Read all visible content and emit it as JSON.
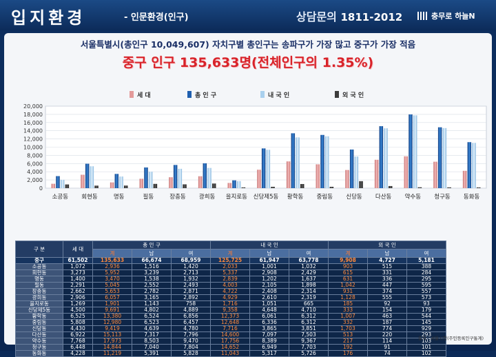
{
  "header": {
    "title": "입지환경",
    "subtitle": "- 인문환경(인구)",
    "right_label": "상담문의",
    "right_number": "1811-2012",
    "logo_text": "충무로 하늘N"
  },
  "headline": "서울특별시(총인구 10,049,607) 자치구별 총인구는 송파구가 가장 많고 중구가 가장 적음",
  "highlight": "중구 인구 135,633명(전체인구의 1.35%)",
  "colors": {
    "households": "#e39a9a",
    "total": "#1f5faf",
    "domestic": "#a9d0ee",
    "foreign": "#3c3c3c"
  },
  "chart_data": {
    "type": "bar",
    "categories": [
      "소공동",
      "회현동",
      "명동",
      "필동",
      "장충동",
      "광희동",
      "을지로동",
      "신당제5동",
      "황학동",
      "중림동",
      "신당동",
      "다산동",
      "약수동",
      "청구동",
      "동화동"
    ],
    "series": [
      {
        "name": "세 대",
        "values": [
          1072,
          3273,
          1400,
          2291,
          2662,
          2906,
          1269,
          4500,
          6525,
          5808,
          4430,
          6922,
          7768,
          6448,
          4228
        ]
      },
      {
        "name": "총 인 구",
        "values": [
          2936,
          5952,
          3470,
          5045,
          5653,
          6057,
          1901,
          9691,
          13380,
          12980,
          9419,
          15113,
          17973,
          14844,
          11219
        ]
      },
      {
        "name": "내 국 인",
        "values": [
          2033,
          5337,
          2839,
          4003,
          4722,
          4929,
          1716,
          9358,
          12373,
          12648,
          7716,
          14600,
          17756,
          14652,
          11043
        ]
      },
      {
        "name": "외 국 인",
        "values": [
          903,
          615,
          631,
          1042,
          931,
          1128,
          185,
          333,
          1007,
          332,
          1703,
          513,
          217,
          192,
          176
        ]
      }
    ],
    "ylim": [
      0,
      20000
    ],
    "yticks": [
      "0",
      "2,000",
      "4,000",
      "6,000",
      "8,000",
      "10,000",
      "12,000",
      "14,000",
      "16,000",
      "18,000",
      "20,000"
    ],
    "legend_position": "top",
    "grid": true
  },
  "table": {
    "corner": "구 분",
    "households": "세 대",
    "groups": [
      "총 인 구",
      "내 국 인",
      "외 국 인"
    ],
    "subheads": [
      "계",
      "남",
      "여"
    ],
    "total_row": [
      "중구",
      "61,502",
      "135,633",
      "66,674",
      "68,959",
      "125,725",
      "61,947",
      "63,778",
      "9,908",
      "4,727",
      "5,181"
    ],
    "rows": [
      [
        "소공동",
        "1,072",
        "2,936",
        "1,516",
        "1,420",
        "2,033",
        "1,001",
        "1,032",
        "903",
        "515",
        "388"
      ],
      [
        "회현동",
        "3,273",
        "5,952",
        "3,239",
        "2,713",
        "5,337",
        "2,908",
        "2,429",
        "615",
        "331",
        "284"
      ],
      [
        "명동",
        "1,400",
        "3,470",
        "1,538",
        "1,932",
        "2,839",
        "1,202",
        "1,637",
        "631",
        "336",
        "295"
      ],
      [
        "필동",
        "2,291",
        "5,045",
        "2,552",
        "2,493",
        "4,003",
        "2,105",
        "1,898",
        "1,042",
        "447",
        "595"
      ],
      [
        "장충동",
        "2,662",
        "5,653",
        "2,782",
        "2,871",
        "4,722",
        "2,408",
        "2,314",
        "931",
        "374",
        "557"
      ],
      [
        "광희동",
        "2,906",
        "6,057",
        "3,165",
        "2,892",
        "4,929",
        "2,610",
        "2,319",
        "1,128",
        "555",
        "573"
      ],
      [
        "을지로동",
        "1,269",
        "1,901",
        "1,143",
        "758",
        "1,716",
        "1,051",
        "665",
        "185",
        "92",
        "93"
      ],
      [
        "신당제5동",
        "4,500",
        "9,691",
        "4,802",
        "4,889",
        "9,358",
        "4,648",
        "4,710",
        "333",
        "154",
        "179"
      ],
      [
        "황학동",
        "6,525",
        "13,380",
        "6,524",
        "6,856",
        "12,373",
        "6,061",
        "6,312",
        "1,007",
        "463",
        "544"
      ],
      [
        "중림동",
        "5,808",
        "12,980",
        "6,523",
        "6,457",
        "12,648",
        "6,336",
        "6,312",
        "332",
        "187",
        "145"
      ],
      [
        "신당동",
        "4,430",
        "9,419",
        "4,639",
        "4,780",
        "7,716",
        "3,865",
        "3,851",
        "1,703",
        "774",
        "929"
      ],
      [
        "다산동",
        "6,922",
        "15,113",
        "7,317",
        "7,796",
        "14,600",
        "7,097",
        "7,503",
        "513",
        "220",
        "293"
      ],
      [
        "약수동",
        "7,768",
        "17,973",
        "8,503",
        "9,470",
        "17,756",
        "8,389",
        "9,367",
        "217",
        "114",
        "103"
      ],
      [
        "청구동",
        "6,448",
        "14,844",
        "7,040",
        "7,804",
        "14,652",
        "6,949",
        "7,703",
        "192",
        "91",
        "101"
      ],
      [
        "동화동",
        "4,228",
        "11,219",
        "5,391",
        "5,828",
        "11,043",
        "5,317",
        "5,726",
        "176",
        "74",
        "102"
      ]
    ]
  },
  "source": "출처 : 서울시청(주민등록인구통계)"
}
